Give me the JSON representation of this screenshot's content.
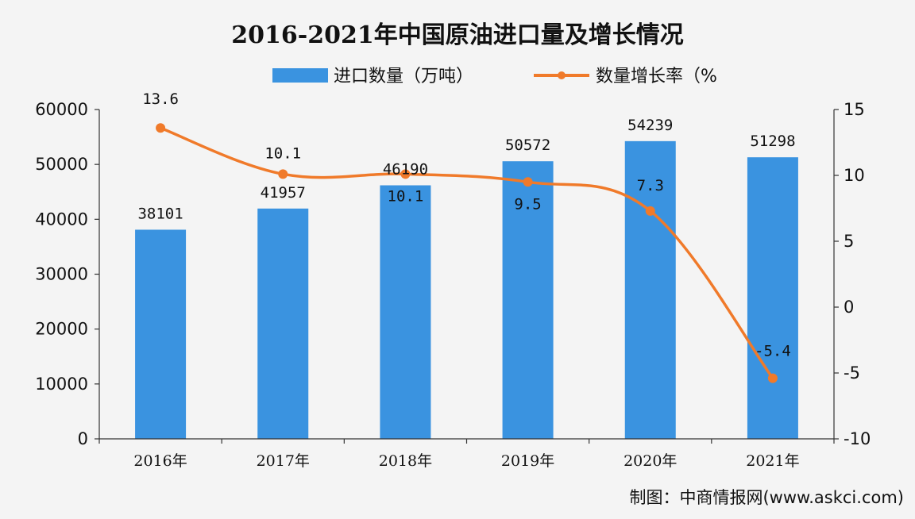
{
  "chart_data": {
    "type": "bar",
    "title": "2016-2021年中国原油进口量及增长情况",
    "categories": [
      "2016年",
      "2017年",
      "2018年",
      "2019年",
      "2020年",
      "2021年"
    ],
    "series": [
      {
        "name": "进口数量（万吨）",
        "type": "bar",
        "axis": "left",
        "color": "#3a93e0",
        "values": [
          38101,
          41957,
          46190,
          50572,
          54239,
          51298
        ],
        "labels": [
          "38101",
          "41957",
          "46190",
          "50572",
          "54239",
          "51298"
        ]
      },
      {
        "name": "数量增长率（%",
        "type": "line",
        "axis": "right",
        "color": "#f07a2a",
        "values": [
          13.6,
          10.1,
          10.1,
          9.5,
          7.3,
          -5.4
        ],
        "labels": [
          "13.6",
          "10.1",
          "10.1",
          "9.5",
          "7.3",
          "-5.4"
        ]
      }
    ],
    "y_left": {
      "min": 0,
      "max": 60000,
      "ticks": [
        "0",
        "10000",
        "20000",
        "30000",
        "40000",
        "50000",
        "60000"
      ]
    },
    "y_right": {
      "min": -10,
      "max": 15,
      "ticks": [
        "-10",
        "-5",
        "0",
        "5",
        "10",
        "15"
      ]
    },
    "legend": "top-center",
    "grid": false
  },
  "source": "制图：中商情报网(www.askci.com)"
}
